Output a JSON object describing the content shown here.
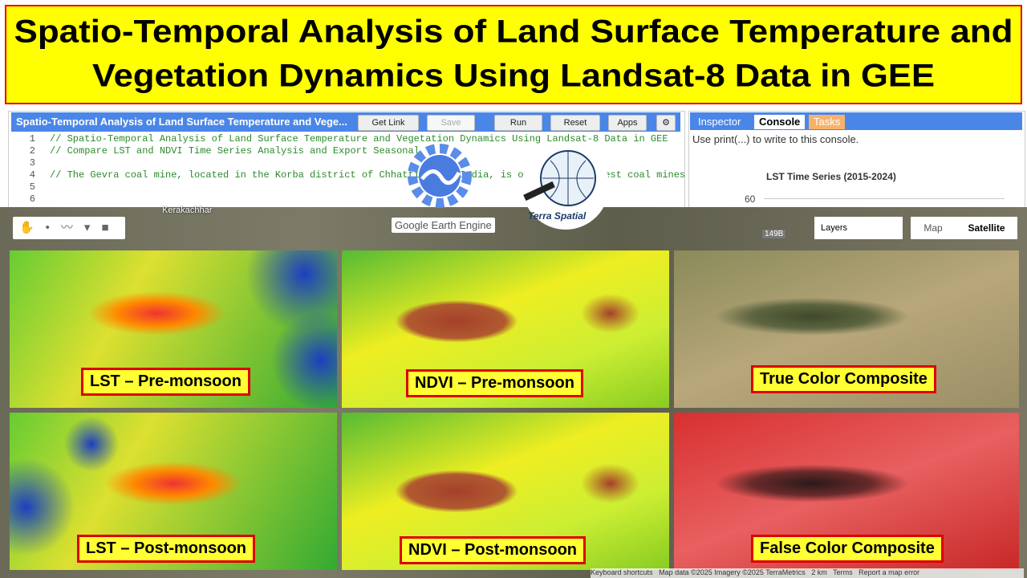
{
  "banner": {
    "title_line1": "Spatio-Temporal Analysis of Land Surface Temperature and",
    "title_line2": "Vegetation Dynamics Using Landsat-8 Data in GEE"
  },
  "editor": {
    "script_name": "Spatio-Temporal Analysis of Land Surface Temperature and Vege...",
    "buttons": [
      "Get Link",
      "Save",
      "Run",
      "Reset",
      "Apps"
    ],
    "lines": [
      {
        "number": 1,
        "code": "// Spatio-Temporal Analysis of Land Surface Temperature and Vegetation Dynamics Using Landsat-8 Data in GEE"
      },
      {
        "number": 2,
        "code": "// Compare LST and NDVI Time Series Analysis and Export Seasonal"
      },
      {
        "number": 3
      },
      {
        "number": 4,
        "code": "// The Gevra coal mine, located in the Korba district of Chhattisgarh, India, is one of the largest coal mines"
      },
      {
        "number": 5
      },
      {
        "number": 6
      }
    ]
  },
  "side_panel": {
    "tabs": [
      "Inspector",
      "Console",
      "Tasks"
    ],
    "console_hint": "Use print(...) to write to this console.",
    "chart_title": "LST Time Series (2015-2024)",
    "chart_tick": 60
  },
  "map": {
    "logo": "Google Earth Engine",
    "brand": "Terra Spatial",
    "layers": "Layers",
    "map_types": [
      "Map",
      "Satellite"
    ],
    "places": [
      "Kerakachhar",
      "149B"
    ],
    "panels": [
      "LST – Pre-monsoon",
      "NDVI – Pre-monsoon",
      "True Color Composite",
      "LST – Post-monsoon",
      "NDVI – Post-monsoon",
      "False Color Composite"
    ],
    "footer": [
      "Keyboard shortcuts",
      "Map data ©2025 Imagery ©2025 TerraMetrics",
      "2 km",
      "Terms",
      "Report a map error"
    ]
  }
}
